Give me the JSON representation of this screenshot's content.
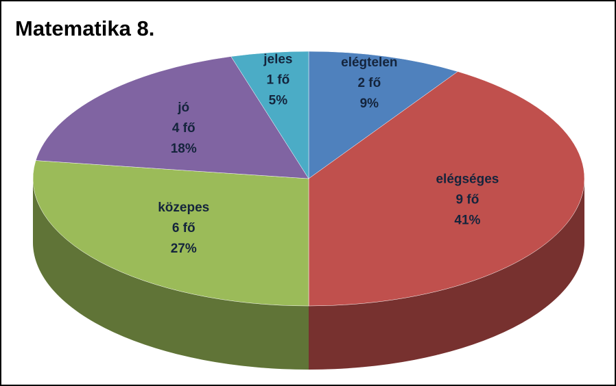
{
  "chart_data": {
    "type": "pie3d",
    "title": "Matematika 8.",
    "categories": [
      "elégtelen",
      "elégséges",
      "közepes",
      "jó",
      "jeles"
    ],
    "values": [
      2,
      9,
      6,
      4,
      1
    ],
    "value_labels": [
      "2 fő",
      "9 fő",
      "6 fő",
      "4 fő",
      "1 fő"
    ],
    "percentages": [
      9,
      41,
      27,
      18,
      5
    ],
    "percentage_labels": [
      "9%",
      "41%",
      "27%",
      "18%",
      "5%"
    ],
    "colors": [
      "#4f81bd",
      "#c0504d",
      "#9bbb59",
      "#8064a2",
      "#4bacc6"
    ]
  }
}
